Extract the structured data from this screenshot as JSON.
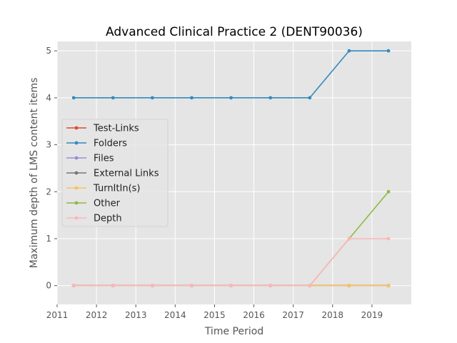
{
  "chart_data": {
    "type": "line",
    "title": "Advanced Clinical Practice 2 (DENT90036)",
    "xlabel": "Time Period",
    "ylabel": "Maximum depth of LMS content items",
    "xlim": [
      2011,
      2020
    ],
    "ylim": [
      -0.4,
      5.2
    ],
    "x_ticks": [
      2011,
      2012,
      2013,
      2014,
      2015,
      2016,
      2017,
      2018,
      2019
    ],
    "y_ticks": [
      0,
      1,
      2,
      3,
      4,
      5
    ],
    "x": [
      2011.42,
      2012.42,
      2013.42,
      2014.42,
      2015.42,
      2016.42,
      2017.42,
      2018.42,
      2019.42
    ],
    "grid": true,
    "legend_position": "center-left",
    "series": [
      {
        "name": "Test-Links",
        "color": "#E24A33",
        "values": [
          0,
          0,
          0,
          0,
          0,
          0,
          0,
          0,
          0
        ]
      },
      {
        "name": "Folders",
        "color": "#348ABD",
        "values": [
          4,
          4,
          4,
          4,
          4,
          4,
          4,
          5,
          5
        ]
      },
      {
        "name": "Files",
        "color": "#988ED5",
        "values": [
          0,
          0,
          0,
          0,
          0,
          0,
          0,
          0,
          0
        ]
      },
      {
        "name": "External Links",
        "color": "#777777",
        "values": [
          0,
          0,
          0,
          0,
          0,
          0,
          0,
          0,
          0
        ]
      },
      {
        "name": "TurnItIn(s)",
        "color": "#FBC15E",
        "values": [
          0,
          0,
          0,
          0,
          0,
          0,
          0,
          0,
          0
        ]
      },
      {
        "name": "Other",
        "color": "#8EBA42",
        "values": [
          0,
          0,
          0,
          0,
          0,
          0,
          0,
          1,
          2
        ]
      },
      {
        "name": "Depth",
        "color": "#FFB5B8",
        "values": [
          0,
          0,
          0,
          0,
          0,
          0,
          0,
          1,
          1
        ]
      }
    ]
  }
}
